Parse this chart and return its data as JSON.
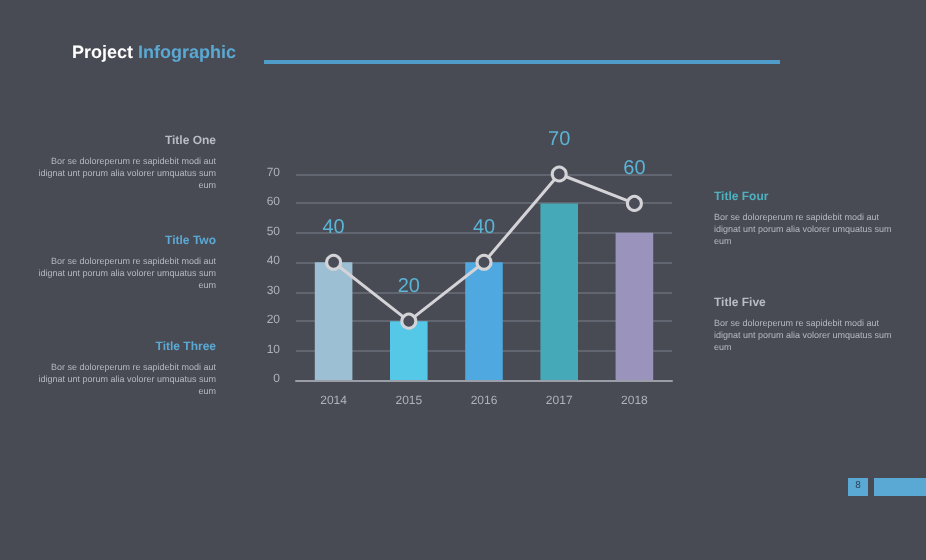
{
  "chart_data": {
    "type": "bar",
    "title": "Project Infographic",
    "categories": [
      "2014",
      "2015",
      "2016",
      "2017",
      "2018"
    ],
    "series": [
      {
        "colors": [
          "#9cbfd4",
          "#55c8e8",
          "#4fa8e0",
          "#45a9b8",
          "#9a94bc"
        ],
        "values": [
          40,
          20,
          40,
          60,
          50
        ]
      },
      {
        "type": "line",
        "color": "#d4d4d8",
        "values": [
          40,
          20,
          40,
          70,
          60
        ],
        "value_labels": [
          "40",
          "20",
          "40",
          "70",
          "60"
        ],
        "marker": "circle"
      }
    ],
    "ylim": [
      0,
      70
    ],
    "yticks": [
      0,
      10,
      20,
      30,
      40,
      50,
      60,
      70
    ],
    "grid": "y",
    "annotations": [
      "Title One",
      "Bor se doloreperum re sapidebit modi aut idignat unt porum alia volorer umquatus sum eum",
      "Title Two",
      "Bor se doloreperum re sapidebit modi aut idignat unt porum alia volorer umquatus sum eum",
      "Title Three",
      "Bor se doloreperum re sapidebit modi aut idignat unt porum alia volorer umquatus sum eum",
      "Title Four",
      "Bor se doloreperum re sapidebit modi aut idignat unt porum alia volorer umquatus sum eum",
      "Title Five",
      "Bor se doloreperum re sapidebit modi aut idignat unt porum alia volorer umquatus sum eum",
      "8"
    ]
  }
}
